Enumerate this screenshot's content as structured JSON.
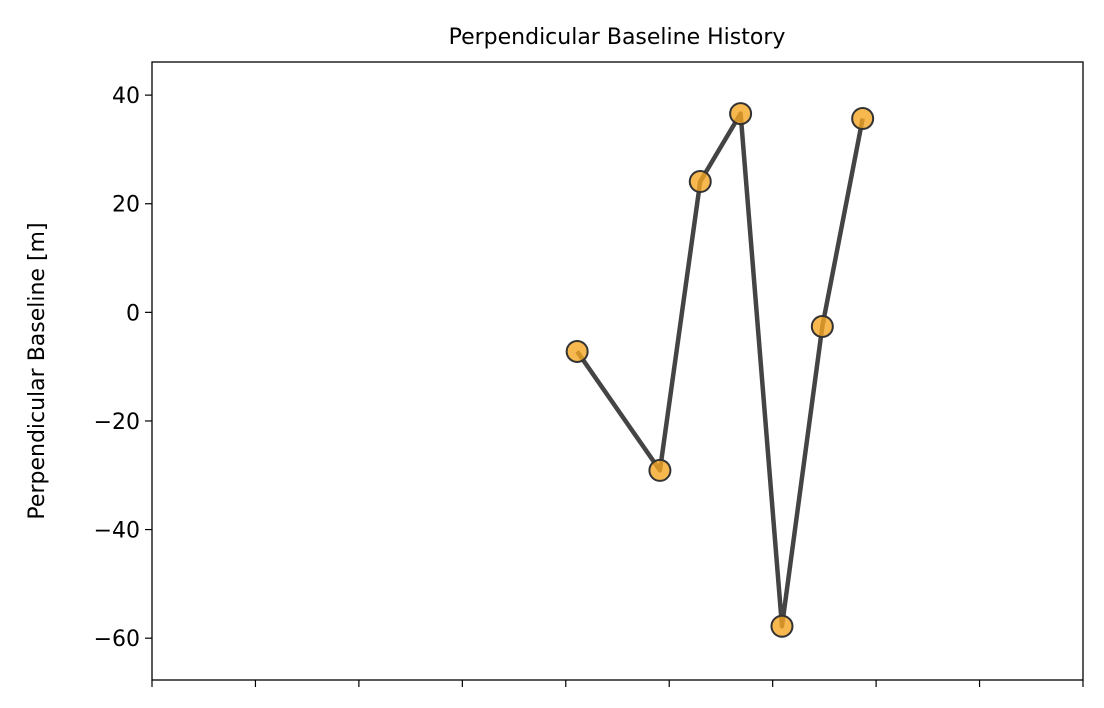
{
  "chart_data": {
    "type": "line",
    "title": "Perpendicular Baseline History",
    "xlabel": "",
    "ylabel": "Perpendicular Baseline [m]",
    "x": [
      4.11,
      4.91,
      5.3,
      5.69,
      6.09,
      6.48,
      6.87
    ],
    "values": [
      -7.2,
      -29.1,
      24.1,
      36.6,
      -57.8,
      -2.6,
      35.7
    ],
    "xlim": [
      0,
      9
    ],
    "ylim": [
      -67.7,
      46.1
    ],
    "x_ticks": [
      0,
      1,
      2,
      3,
      4,
      5,
      6,
      7,
      8,
      9
    ],
    "x_tick_labels_visible": false,
    "y_ticks": [
      40,
      20,
      0,
      -20,
      -40,
      -60
    ],
    "y_tick_labels": [
      "40",
      "20",
      "0",
      "−20",
      "−40",
      "−60"
    ],
    "grid": false,
    "colors": {
      "line": "#444444",
      "marker_fill": "#f5a623",
      "marker_edge": "#333333"
    }
  }
}
